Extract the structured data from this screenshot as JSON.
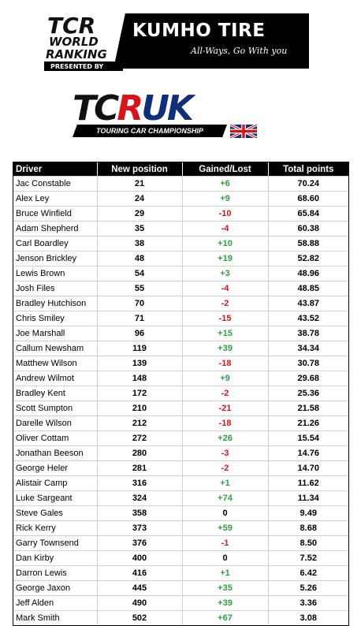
{
  "banner": {
    "tcr_logo": {
      "line1": "TCR",
      "line2": "WORLD",
      "line3": "RANKING",
      "line4": "PRESENTED BY"
    },
    "sponsor": "KUMHO TIRE",
    "tagline": "All-Ways, Go With you"
  },
  "series_logo": {
    "letters_a": "TC",
    "letters_b": "R",
    "letters_c": "UK",
    "strap": "TOURING CAR CHAMPIONSHIP"
  },
  "colors": {
    "up": "#2ea043",
    "down": "#d7141a",
    "tcr_red": "#d7141a",
    "uk_blue": "#0f2f7a"
  },
  "table": {
    "headers": [
      "Driver",
      "New position",
      "Gained/Lost",
      "Total points"
    ],
    "rows": [
      {
        "driver": "Jac Constable",
        "position": "21",
        "change": "+6",
        "points": "70.24"
      },
      {
        "driver": "Alex Ley",
        "position": "24",
        "change": "+9",
        "points": "68.60"
      },
      {
        "driver": "Bruce Winfield",
        "position": "29",
        "change": "-10",
        "points": "65.84"
      },
      {
        "driver": "Adam Shepherd",
        "position": "35",
        "change": "-4",
        "points": "60.38"
      },
      {
        "driver": "Carl Boardley",
        "position": "38",
        "change": "+10",
        "points": "58.88"
      },
      {
        "driver": "Jenson Brickley",
        "position": "48",
        "change": "+19",
        "points": "52.82"
      },
      {
        "driver": "Lewis Brown",
        "position": "54",
        "change": "+3",
        "points": "48.96"
      },
      {
        "driver": "Josh Files",
        "position": "55",
        "change": "-4",
        "points": "48.85"
      },
      {
        "driver": "Bradley Hutchison",
        "position": "70",
        "change": "-2",
        "points": "43.87"
      },
      {
        "driver": "Chris Smiley",
        "position": "71",
        "change": "-15",
        "points": "43.52"
      },
      {
        "driver": "Joe Marshall",
        "position": "96",
        "change": "+15",
        "points": "38.78"
      },
      {
        "driver": "Callum Newsham",
        "position": "119",
        "change": "+39",
        "points": "34.34"
      },
      {
        "driver": "Matthew Wilson",
        "position": "139",
        "change": "-18",
        "points": "30.78"
      },
      {
        "driver": "Andrew Wilmot",
        "position": "148",
        "change": "+9",
        "points": "29.68"
      },
      {
        "driver": "Bradley Kent",
        "position": "172",
        "change": "-2",
        "points": "25.36"
      },
      {
        "driver": "Scott Sumpton",
        "position": "210",
        "change": "-21",
        "points": "21.58"
      },
      {
        "driver": "Darelle Wilson",
        "position": "212",
        "change": "-18",
        "points": "21.26"
      },
      {
        "driver": "Oliver Cottam",
        "position": "272",
        "change": "+26",
        "points": "15.54"
      },
      {
        "driver": "Jonathan Beeson",
        "position": "280",
        "change": "-3",
        "points": "14.76"
      },
      {
        "driver": "George Heler",
        "position": "281",
        "change": "-2",
        "points": "14.70"
      },
      {
        "driver": "Alistair Camp",
        "position": "316",
        "change": "+1",
        "points": "11.62"
      },
      {
        "driver": "Luke Sargeant",
        "position": "324",
        "change": "+74",
        "points": "11.34"
      },
      {
        "driver": "Steve Gales",
        "position": "358",
        "change": "0",
        "points": "9.49"
      },
      {
        "driver": "Rick Kerry",
        "position": "373",
        "change": "+59",
        "points": "8.68"
      },
      {
        "driver": "Garry Townsend",
        "position": "376",
        "change": "-1",
        "points": "8.50"
      },
      {
        "driver": "Dan Kirby",
        "position": "400",
        "change": "0",
        "points": "7.52"
      },
      {
        "driver": "Darron Lewis",
        "position": "416",
        "change": "+1",
        "points": "6.42"
      },
      {
        "driver": "George Jaxon",
        "position": "445",
        "change": "+35",
        "points": "5.26"
      },
      {
        "driver": "Jeff Alden",
        "position": "490",
        "change": "+39",
        "points": "3.36"
      },
      {
        "driver": "Mark Smith",
        "position": "502",
        "change": "+67",
        "points": "3.08"
      }
    ]
  }
}
